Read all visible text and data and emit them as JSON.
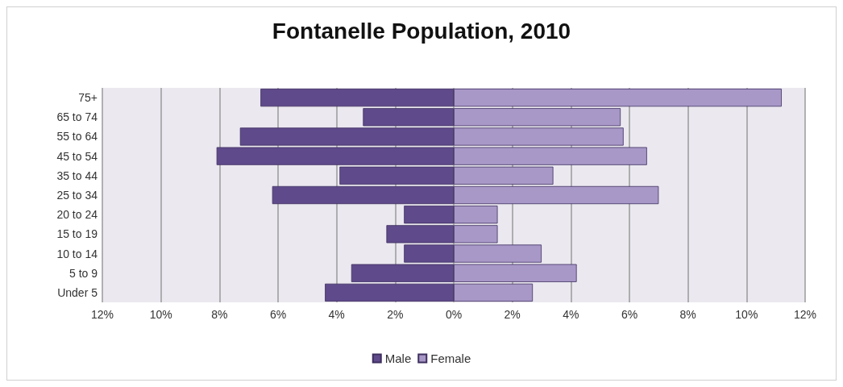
{
  "chart_data": {
    "type": "bar",
    "orientation": "horizontal",
    "title": "Fontanelle Population, 2010",
    "categories": [
      "75+",
      "65 to 74",
      "55 to 64",
      "45 to 54",
      "35 to 44",
      "25 to 34",
      "20 to 24",
      "15 to 19",
      "10 to 14",
      "5 to 9",
      "Under 5"
    ],
    "series": [
      {
        "name": "Male",
        "color": "#5f4a8b",
        "values": [
          -6.6,
          -3.1,
          -7.3,
          -8.1,
          -3.9,
          -6.2,
          -1.7,
          -2.3,
          -1.7,
          -3.5,
          -4.4
        ]
      },
      {
        "name": "Female",
        "color": "#a898c8",
        "values": [
          11.2,
          5.7,
          5.8,
          6.6,
          3.4,
          7.0,
          1.5,
          1.5,
          3.0,
          4.2,
          2.7
        ]
      }
    ],
    "xlim": [
      -12,
      12
    ],
    "xticks": [
      {
        "value": -12,
        "label": "12%"
      },
      {
        "value": -10,
        "label": "10%"
      },
      {
        "value": -8,
        "label": "8%"
      },
      {
        "value": -6,
        "label": "6%"
      },
      {
        "value": -4,
        "label": "4%"
      },
      {
        "value": -2,
        "label": "2%"
      },
      {
        "value": 0,
        "label": "0%"
      },
      {
        "value": 2,
        "label": "2%"
      },
      {
        "value": 4,
        "label": "4%"
      },
      {
        "value": 6,
        "label": "6%"
      },
      {
        "value": 8,
        "label": "8%"
      },
      {
        "value": 10,
        "label": "10%"
      },
      {
        "value": 12,
        "label": "12%"
      }
    ],
    "stacked": true,
    "grid": "x",
    "legend": "bottom"
  }
}
